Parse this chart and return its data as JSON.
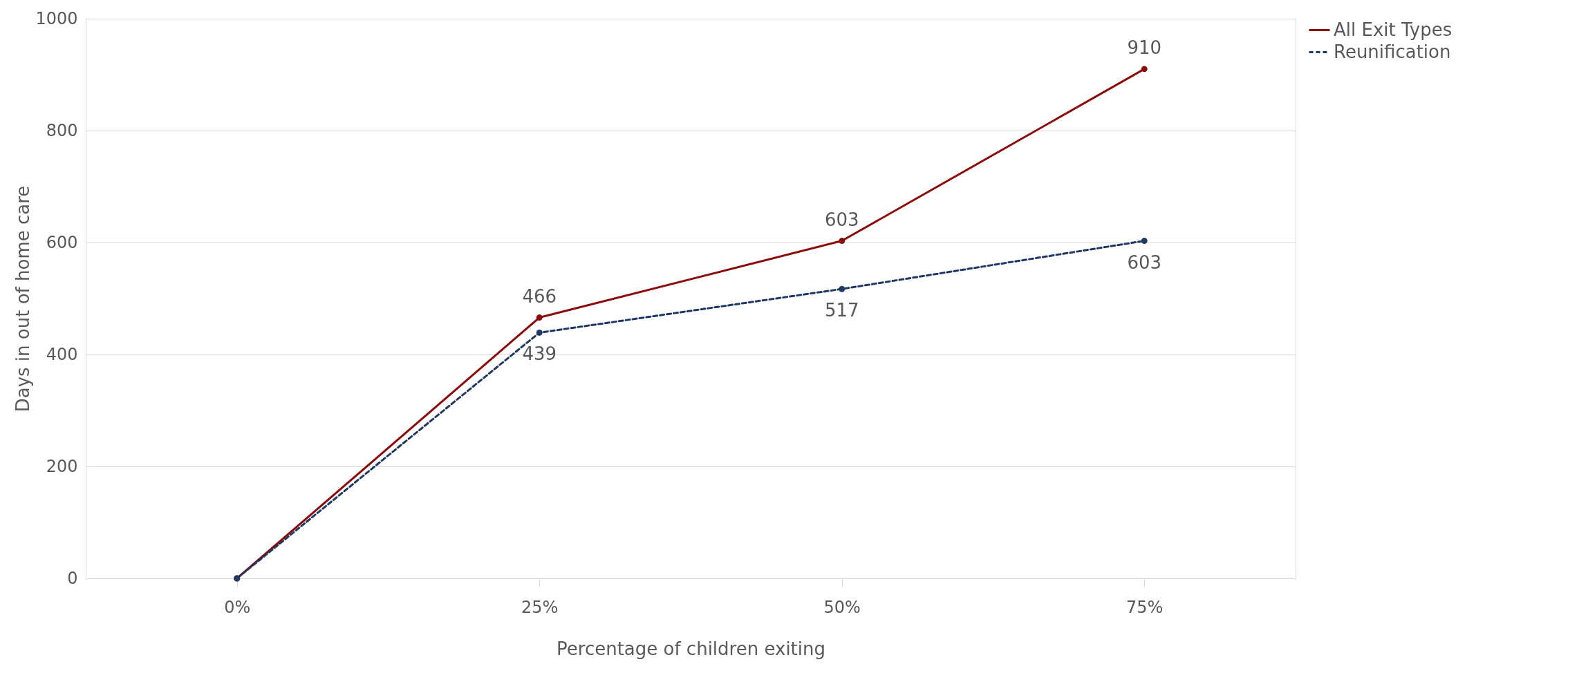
{
  "chart_data": {
    "type": "line",
    "xlabel": "Percentage of children exiting",
    "ylabel": "Days  in out of home care",
    "categories": [
      "0%",
      "25%",
      "50%",
      "75%"
    ],
    "series": [
      {
        "name": "All Exit Types",
        "color": "#8b0a0a",
        "values": [
          0,
          466,
          603,
          910
        ],
        "value_labels": [
          null,
          "466",
          "603",
          "910"
        ],
        "line_style": "solid"
      },
      {
        "name": "Reunification",
        "color": "#203864",
        "values": [
          0,
          439,
          517,
          603
        ],
        "value_labels": [
          null,
          "439",
          "517",
          "603"
        ],
        "line_style": "dashed"
      }
    ],
    "ylim": [
      0,
      1000
    ],
    "yticks": [
      0,
      200,
      400,
      600,
      800,
      {
        "value": 1000,
        "label": "1000"
      }
    ],
    "grid": "y",
    "legend": "right",
    "marker": "circle"
  }
}
